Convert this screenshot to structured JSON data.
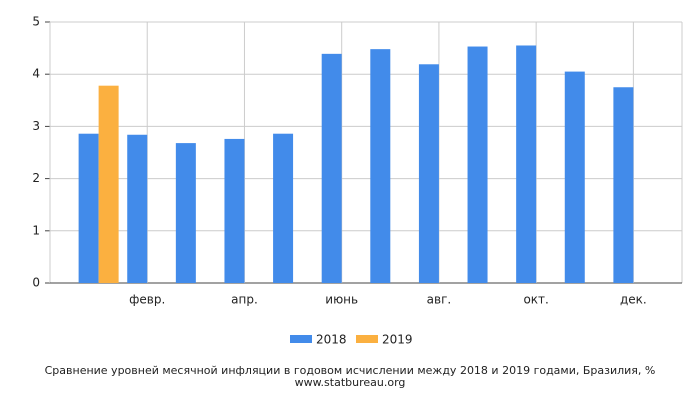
{
  "chart_data": {
    "type": "bar",
    "title": "Сравнение уровней месячной инфляции в годовом исчислении между 2018 и 2019 годами, Бразилия, %",
    "source": "www.statbureau.org",
    "categories": [
      null,
      "февр.",
      null,
      "апр.",
      null,
      "июнь",
      null,
      "авг.",
      null,
      "окт.",
      null,
      "дек."
    ],
    "series": [
      {
        "name": "2018",
        "color": "#428bea",
        "values": [
          2.86,
          2.84,
          2.68,
          2.76,
          2.86,
          4.39,
          4.48,
          4.19,
          4.53,
          4.55,
          4.05,
          3.75
        ]
      },
      {
        "name": "2019",
        "color": "#fbb040",
        "values": [
          3.78,
          null,
          null,
          null,
          null,
          null,
          null,
          null,
          null,
          null,
          null,
          null
        ]
      }
    ],
    "ylim": [
      0,
      5
    ],
    "yticks": [
      0,
      1,
      2,
      3,
      4,
      5
    ],
    "grid": true,
    "legend": "bottom"
  }
}
